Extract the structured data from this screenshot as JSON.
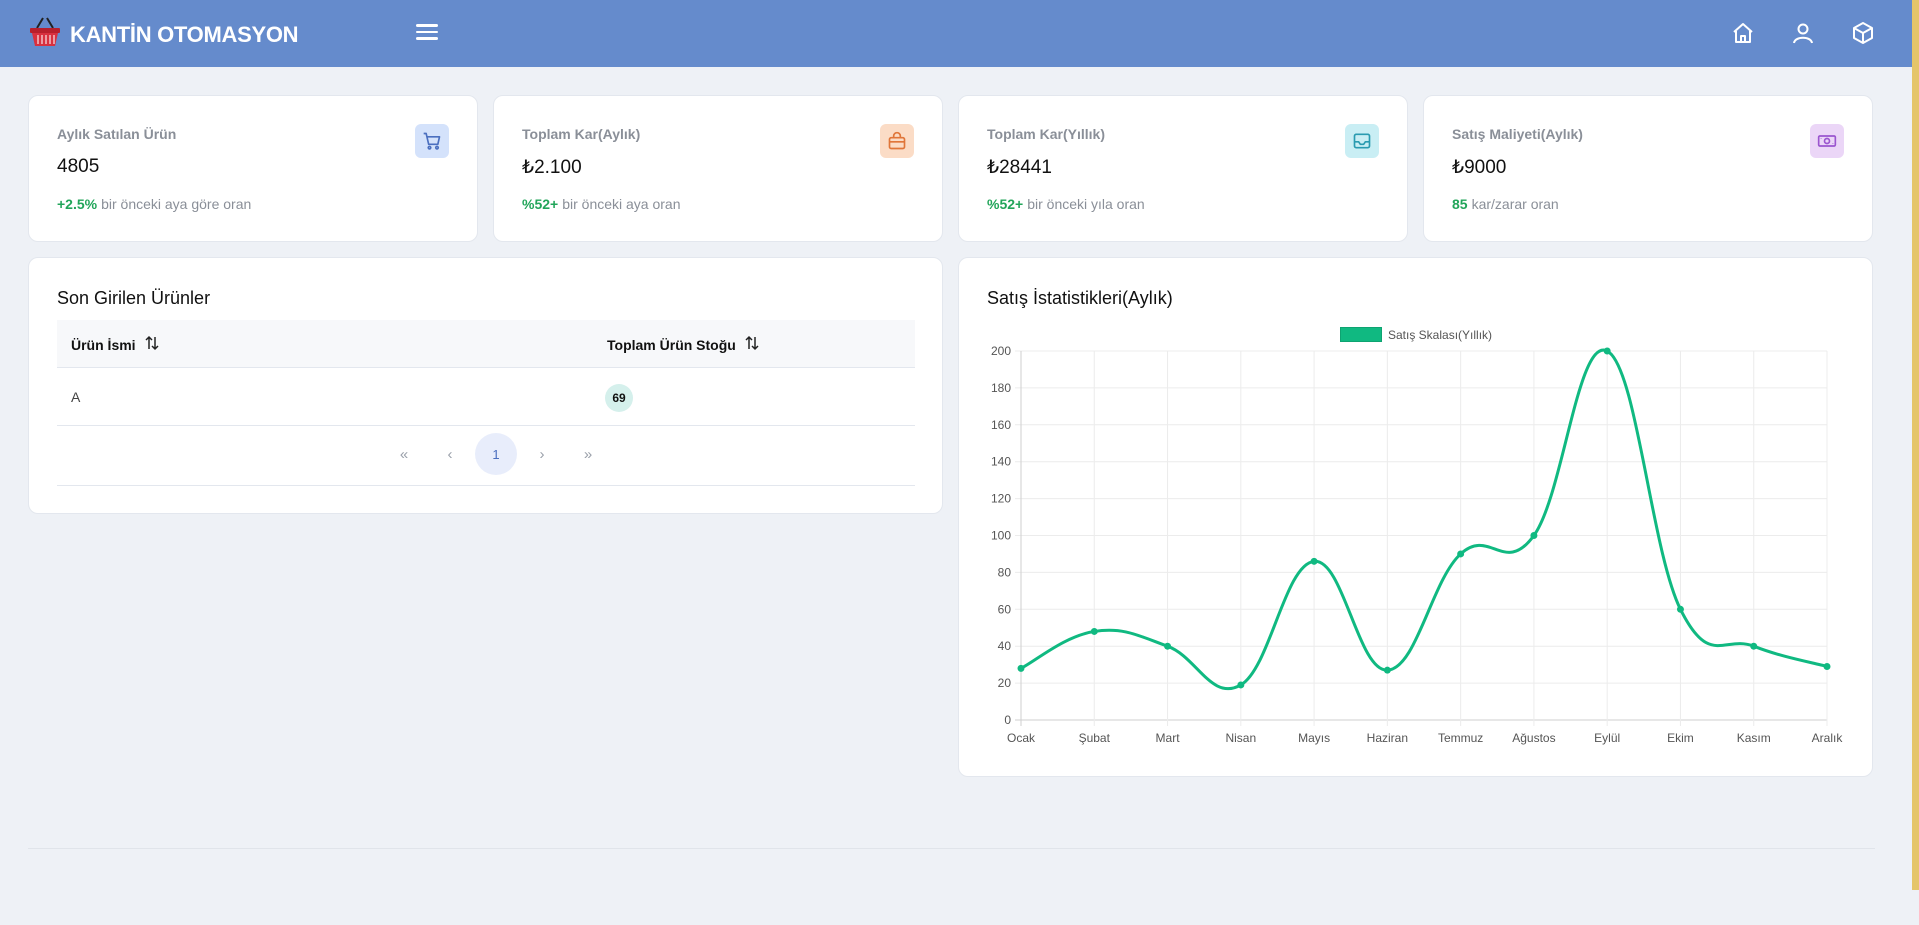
{
  "app": {
    "title": "KANTİN OTOMASYON"
  },
  "header": {
    "icons": [
      "home-icon",
      "user-icon",
      "box-icon"
    ]
  },
  "stats": [
    {
      "title": "Aylık Satılan Ürün",
      "value": "4805",
      "highlight": "+2.5%",
      "foot": "bir önceki aya göre oran",
      "icon": "cart-icon",
      "icon_bg": "#d4e2fb",
      "icon_color": "#4b6fbf"
    },
    {
      "title": "Toplam Kar(Aylık)",
      "value": "₺2.100",
      "highlight": "%52+",
      "foot": "bir önceki aya oran",
      "icon": "shopping-bag-icon",
      "icon_bg": "#fbdcc6",
      "icon_color": "#e0763a"
    },
    {
      "title": "Toplam Kar(Yıllık)",
      "value": "₺28441",
      "highlight": "%52+",
      "foot": "bir önceki yıla oran",
      "icon": "inbox-icon",
      "icon_bg": "#c9eef4",
      "icon_color": "#2a9bb0"
    },
    {
      "title": "Satış Maliyeti(Aylık)",
      "value": "₺9000",
      "highlight": "85",
      "foot": "kar/zarar oran",
      "icon": "cash-icon",
      "icon_bg": "#ebd6f7",
      "icon_color": "#9b55cf"
    }
  ],
  "recent": {
    "title": "Son Girilen Ürünler",
    "columns": [
      "Ürün İsmi",
      "Toplam Ürün Stoğu"
    ],
    "rows": [
      {
        "name": "A",
        "stock": "69"
      }
    ],
    "pagination": {
      "first": "«",
      "prev": "‹",
      "current": "1",
      "next": "›",
      "last": "»"
    }
  },
  "sales": {
    "title": "Satış İstatistikleri(Aylık)"
  },
  "chart_data": {
    "type": "line",
    "title": "",
    "categories": [
      "Ocak",
      "Şubat",
      "Mart",
      "Nisan",
      "Mayıs",
      "Haziran",
      "Temmuz",
      "Ağustos",
      "Eylül",
      "Ekim",
      "Kasım",
      "Aralık"
    ],
    "series": [
      {
        "name": "Satış Skalası(Yıllık)",
        "values": [
          28,
          48,
          40,
          19,
          86,
          27,
          90,
          100,
          200,
          60,
          40,
          29
        ],
        "color": "#10b981"
      }
    ],
    "ylim": [
      0,
      200
    ],
    "yticks": [
      0,
      20,
      40,
      60,
      80,
      100,
      120,
      140,
      160,
      180,
      200
    ],
    "grid": true,
    "legend": "top-center",
    "smooth": true
  }
}
